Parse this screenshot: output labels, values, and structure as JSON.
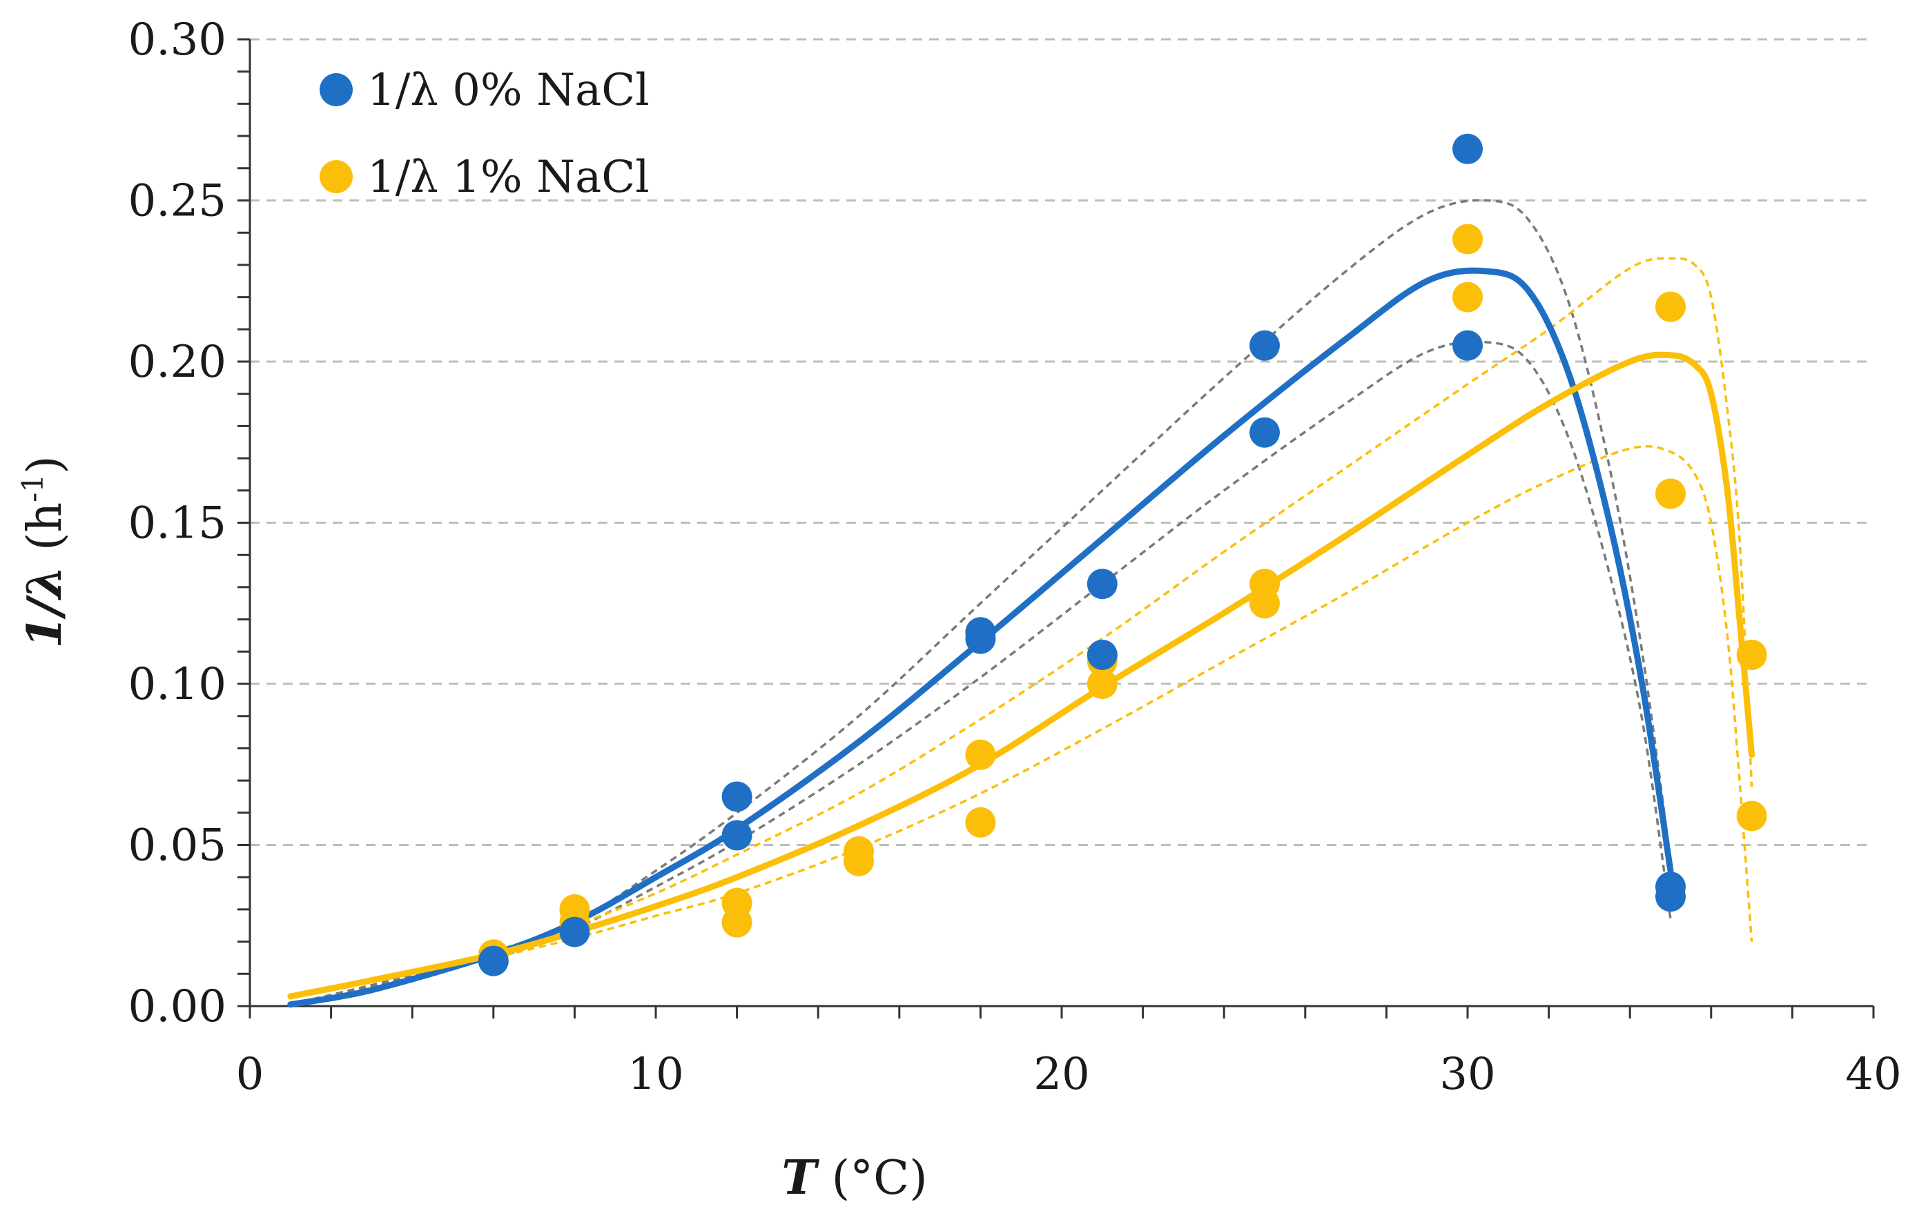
{
  "chart_data": {
    "type": "scatter",
    "title": "",
    "xlabel": {
      "italic": "T",
      "rest": " (°C)"
    },
    "ylabel": {
      "italic": "1/λ",
      "rest": " (h",
      "sup": "-1",
      "close": ")"
    },
    "xlim": [
      0,
      40
    ],
    "ylim": [
      0,
      0.3
    ],
    "x_ticks": [
      0,
      10,
      20,
      30,
      40
    ],
    "x_tick_labels": [
      "0",
      "10",
      "20",
      "30",
      "40"
    ],
    "x_minor_step": 2,
    "y_ticks": [
      0,
      0.05,
      0.1,
      0.15,
      0.2,
      0.25,
      0.3
    ],
    "y_tick_labels": [
      "0.00",
      "0.05",
      "0.10",
      "0.15",
      "0.20",
      "0.25",
      "0.30"
    ],
    "y_minor_step": 0.01,
    "grid": "horizontal-dashed",
    "legend_position": "top-left",
    "series": [
      {
        "name": "1/λ 0% NaCl",
        "color": "#1f6fc5",
        "points": [
          [
            6,
            0.014
          ],
          [
            8,
            0.023
          ],
          [
            12,
            0.065
          ],
          [
            12,
            0.053
          ],
          [
            18,
            0.114
          ],
          [
            18,
            0.116
          ],
          [
            21,
            0.131
          ],
          [
            21,
            0.109
          ],
          [
            25,
            0.205
          ],
          [
            25,
            0.178
          ],
          [
            30,
            0.266
          ],
          [
            30,
            0.205
          ],
          [
            35,
            0.037
          ],
          [
            35,
            0.034
          ]
        ],
        "fit": [
          [
            1,
            0.0005
          ],
          [
            3,
            0.005
          ],
          [
            6,
            0.016
          ],
          [
            8,
            0.026
          ],
          [
            10,
            0.04
          ],
          [
            12,
            0.055
          ],
          [
            15,
            0.082
          ],
          [
            18,
            0.113
          ],
          [
            21,
            0.145
          ],
          [
            24,
            0.177
          ],
          [
            27,
            0.207
          ],
          [
            29,
            0.225
          ],
          [
            30.5,
            0.228
          ],
          [
            31.5,
            0.222
          ],
          [
            32.5,
            0.196
          ],
          [
            33.5,
            0.15
          ],
          [
            34.3,
            0.1
          ],
          [
            35,
            0.042
          ]
        ],
        "fit_upper": [
          [
            1,
            0.0005
          ],
          [
            6,
            0.016
          ],
          [
            8,
            0.026
          ],
          [
            10,
            0.042
          ],
          [
            12,
            0.06
          ],
          [
            15,
            0.09
          ],
          [
            18,
            0.125
          ],
          [
            21,
            0.16
          ],
          [
            24,
            0.195
          ],
          [
            27,
            0.228
          ],
          [
            29,
            0.246
          ],
          [
            30.5,
            0.25
          ],
          [
            31.5,
            0.244
          ],
          [
            32.5,
            0.218
          ],
          [
            33.5,
            0.167
          ],
          [
            34.3,
            0.11
          ],
          [
            35,
            0.045
          ]
        ],
        "fit_lower": [
          [
            1,
            0.0005
          ],
          [
            6,
            0.015
          ],
          [
            8,
            0.024
          ],
          [
            10,
            0.037
          ],
          [
            12,
            0.051
          ],
          [
            15,
            0.075
          ],
          [
            18,
            0.102
          ],
          [
            21,
            0.131
          ],
          [
            24,
            0.16
          ],
          [
            27,
            0.187
          ],
          [
            29,
            0.203
          ],
          [
            30.5,
            0.206
          ],
          [
            31.5,
            0.2
          ],
          [
            32.5,
            0.176
          ],
          [
            33.5,
            0.134
          ],
          [
            34.3,
            0.089
          ],
          [
            35,
            0.027
          ]
        ]
      },
      {
        "name": "1/λ 1% NaCl",
        "color": "#fbbf0a",
        "points": [
          [
            6,
            0.016
          ],
          [
            8,
            0.03
          ],
          [
            8,
            0.026
          ],
          [
            12,
            0.032
          ],
          [
            12,
            0.026
          ],
          [
            15,
            0.048
          ],
          [
            15,
            0.045
          ],
          [
            18,
            0.078
          ],
          [
            18,
            0.057
          ],
          [
            21,
            0.107
          ],
          [
            21,
            0.1
          ],
          [
            25,
            0.131
          ],
          [
            25,
            0.125
          ],
          [
            30,
            0.238
          ],
          [
            30,
            0.22
          ],
          [
            35,
            0.217
          ],
          [
            35,
            0.159
          ],
          [
            37,
            0.109
          ],
          [
            37,
            0.059
          ]
        ],
        "fit": [
          [
            1,
            0.003
          ],
          [
            3,
            0.008
          ],
          [
            6,
            0.016
          ],
          [
            8,
            0.023
          ],
          [
            10,
            0.031
          ],
          [
            12,
            0.04
          ],
          [
            15,
            0.056
          ],
          [
            18,
            0.075
          ],
          [
            21,
            0.099
          ],
          [
            24,
            0.122
          ],
          [
            27,
            0.146
          ],
          [
            30,
            0.171
          ],
          [
            32,
            0.187
          ],
          [
            34,
            0.2
          ],
          [
            35,
            0.202
          ],
          [
            35.6,
            0.199
          ],
          [
            36,
            0.19
          ],
          [
            36.4,
            0.16
          ],
          [
            36.7,
            0.12
          ],
          [
            37,
            0.078
          ]
        ],
        "fit_upper": [
          [
            6,
            0.017
          ],
          [
            8,
            0.025
          ],
          [
            10,
            0.035
          ],
          [
            12,
            0.047
          ],
          [
            15,
            0.066
          ],
          [
            18,
            0.089
          ],
          [
            21,
            0.114
          ],
          [
            24,
            0.141
          ],
          [
            27,
            0.167
          ],
          [
            30,
            0.193
          ],
          [
            32,
            0.21
          ],
          [
            34,
            0.229
          ],
          [
            35,
            0.232
          ],
          [
            35.6,
            0.23
          ],
          [
            36,
            0.22
          ],
          [
            36.4,
            0.185
          ],
          [
            36.7,
            0.145
          ],
          [
            37,
            0.068
          ]
        ],
        "fit_lower": [
          [
            6,
            0.015
          ],
          [
            8,
            0.021
          ],
          [
            10,
            0.028
          ],
          [
            12,
            0.035
          ],
          [
            15,
            0.049
          ],
          [
            18,
            0.066
          ],
          [
            21,
            0.086
          ],
          [
            24,
            0.107
          ],
          [
            27,
            0.128
          ],
          [
            30,
            0.15
          ],
          [
            32,
            0.163
          ],
          [
            34,
            0.173
          ],
          [
            35,
            0.172
          ],
          [
            35.6,
            0.165
          ],
          [
            36,
            0.15
          ],
          [
            36.4,
            0.115
          ],
          [
            36.7,
            0.07
          ],
          [
            37,
            0.02
          ]
        ]
      }
    ],
    "confidence_band_colors": {
      "0% NaCl": "#7a7a7a",
      "1% NaCl": "#fbbf0a"
    }
  }
}
